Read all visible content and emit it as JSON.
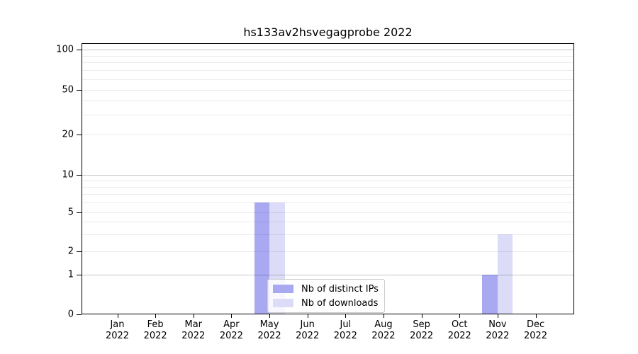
{
  "chart_data": {
    "type": "bar",
    "title": "hs133av2hsvegagprobe 2022",
    "categories": [
      "Jan 2022",
      "Feb 2022",
      "Mar 2022",
      "Apr 2022",
      "May 2022",
      "Jun 2022",
      "Jul 2022",
      "Aug 2022",
      "Sep 2022",
      "Oct 2022",
      "Nov 2022",
      "Dec 2022"
    ],
    "series": [
      {
        "name": "Nb of distinct IPs",
        "color": "#a9a9f2",
        "values": [
          0,
          0,
          0,
          0,
          6,
          0,
          0,
          0,
          0,
          0,
          1,
          0
        ]
      },
      {
        "name": "Nb of downloads",
        "color": "#dcdcf9",
        "values": [
          0,
          0,
          0,
          0,
          6,
          0,
          0,
          0,
          0,
          0,
          3,
          0
        ]
      }
    ],
    "yscale": "symlog",
    "yticks": [
      0,
      1,
      2,
      5,
      10,
      20,
      50,
      100
    ],
    "ylim": [
      0,
      112
    ],
    "grid": "both",
    "legend_position": "lower center inside plot",
    "axis_color": "#000000",
    "grid_major_color": "#c6c6c6",
    "grid_minor_color": "#ebebeb",
    "background_color": "#ffffff"
  }
}
